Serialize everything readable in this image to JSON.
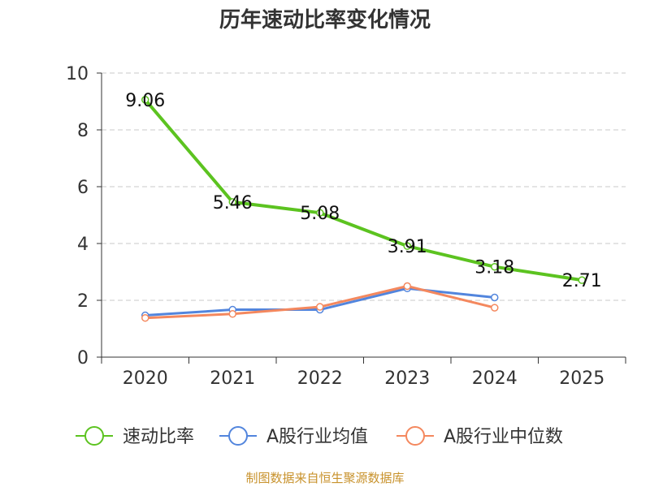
{
  "chart_data": {
    "type": "line",
    "title": "历年速动比率变化情况",
    "categories": [
      "2020",
      "2021",
      "2022",
      "2023",
      "2024",
      "2025"
    ],
    "ylim": [
      0,
      10
    ],
    "yticks": [
      0,
      2,
      4,
      6,
      8,
      10
    ],
    "grid": true,
    "legend_position": "bottom",
    "series": [
      {
        "name": "速动比率",
        "color": "#5cc320",
        "show_labels": true,
        "values": [
          9.06,
          5.46,
          5.08,
          3.91,
          3.18,
          2.71
        ],
        "labels": [
          "9.06",
          "5.46",
          "5.08",
          "3.91",
          "3.18",
          "2.71"
        ]
      },
      {
        "name": "A股行业均值",
        "color": "#5285dd",
        "show_labels": false,
        "values": [
          1.47,
          1.67,
          1.67,
          2.42,
          2.1,
          null
        ]
      },
      {
        "name": "A股行业中位数",
        "color": "#f4885e",
        "show_labels": false,
        "values": [
          1.38,
          1.52,
          1.77,
          2.5,
          1.74,
          null
        ]
      }
    ],
    "source": "制图数据来自恒生聚源数据库"
  }
}
